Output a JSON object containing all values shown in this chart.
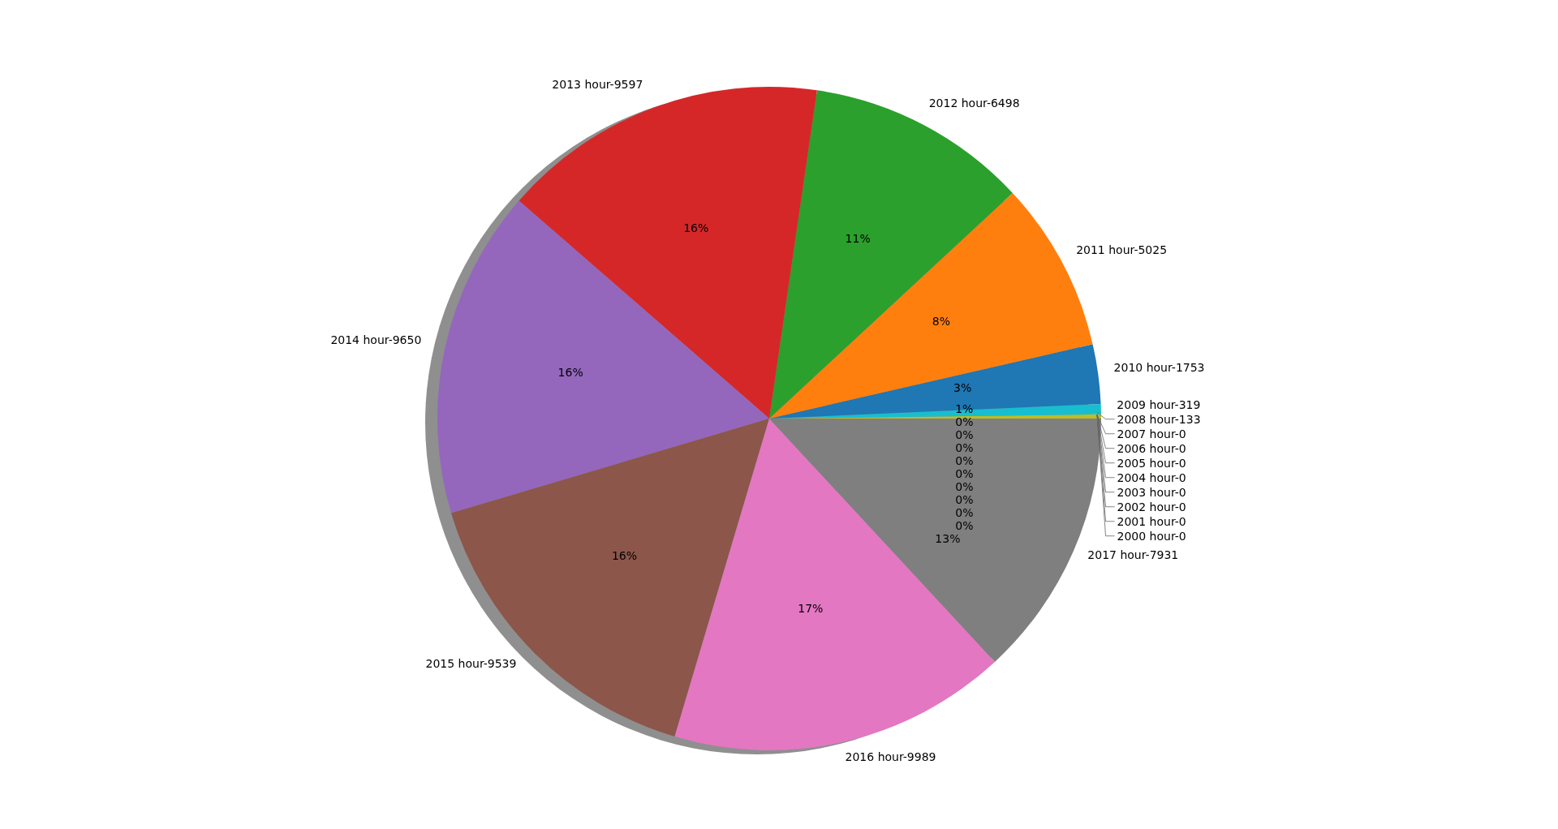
{
  "chart_data": {
    "type": "pie",
    "categories": [
      "2000 hour-0",
      "2001 hour-0",
      "2002 hour-0",
      "2003 hour-0",
      "2004 hour-0",
      "2005 hour-0",
      "2006 hour-0",
      "2007 hour-0",
      "2008 hour-133",
      "2009 hour-319",
      "2010 hour-1753",
      "2011 hour-5025",
      "2012 hour-6498",
      "2013 hour-9597",
      "2014 hour-9650",
      "2015 hour-9539",
      "2016 hour-9989",
      "2017 hour-7931"
    ],
    "values": [
      0,
      0,
      0,
      0,
      0,
      0,
      0,
      0,
      0.2,
      0.5,
      2.9,
      8.3,
      10.8,
      15.9,
      16.0,
      15.8,
      16.5,
      13.1
    ],
    "value_labels": [
      "0%",
      "0%",
      "0%",
      "0%",
      "0%",
      "0%",
      "0%",
      "0%",
      "0%",
      "1%",
      "3%",
      "8%",
      "11%",
      "16%",
      "16%",
      "16%",
      "17%",
      "13%"
    ],
    "colors": [
      "#1f77b4",
      "#ff7f0e",
      "#2ca02c",
      "#d62728",
      "#9467bd",
      "#8c564b",
      "#e377c2",
      "#7f7f7f",
      "#bcbd22",
      "#17becf",
      "#1f77b4",
      "#ff7f0e",
      "#2ca02c",
      "#d62728",
      "#9467bd",
      "#8c564b",
      "#e377c2",
      "#7f7f7f"
    ],
    "legend": false
  }
}
